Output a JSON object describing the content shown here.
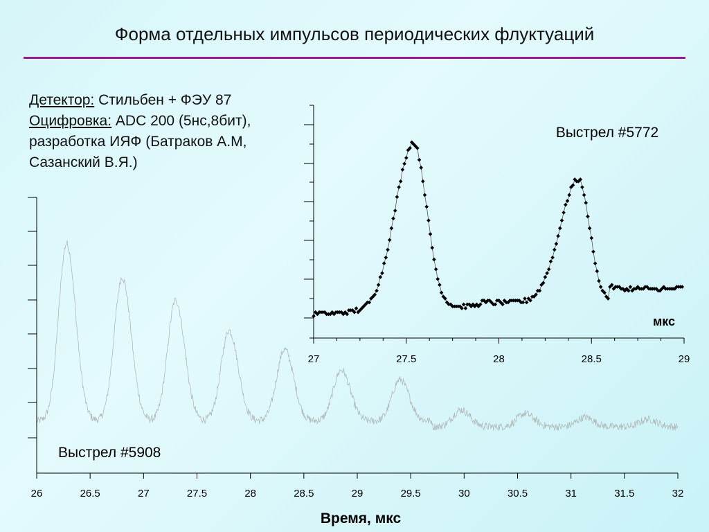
{
  "slide": {
    "title": "Форма отдельных импульсов периодических флуктуаций"
  },
  "info": {
    "detector_label": "Детектор:",
    "detector_value": " Стильбен + ФЭУ 87",
    "digitizer_label": "Оцифровка:",
    "digitizer_value": " ADC 200 (5нс,8бит),",
    "developer_line": "разработка ИЯФ (Батраков А.М,",
    "authors_line": "Сазанский В.Я.)"
  },
  "colors": {
    "title_rule": "#9a1a8e",
    "background": "#d6f6f9",
    "inset_trace": "#000000",
    "main_trace": "#b0b8b8"
  },
  "chart_data": [
    {
      "id": "main",
      "type": "line",
      "series": [
        {
          "name": "Выстрел #5908",
          "peaks": [
            {
              "x": 26.28,
              "height": 0.94
            },
            {
              "x": 26.8,
              "height": 0.76
            },
            {
              "x": 27.3,
              "height": 0.64
            },
            {
              "x": 27.8,
              "height": 0.48
            },
            {
              "x": 28.32,
              "height": 0.38
            },
            {
              "x": 28.85,
              "height": 0.27
            },
            {
              "x": 29.4,
              "height": 0.22
            },
            {
              "x": 29.97,
              "height": 0.09
            },
            {
              "x": 30.57,
              "height": 0.07
            },
            {
              "x": 31.13,
              "height": 0.05
            },
            {
              "x": 31.72,
              "height": 0.04
            }
          ],
          "baseline": 0.0
        }
      ],
      "series_label": "Выстрел #5908",
      "xlabel": "Время, мкс",
      "xlim": [
        26,
        32
      ],
      "x_ticks": [
        "26",
        "26.5",
        "27",
        "27.5",
        "28",
        "28.5",
        "29",
        "29.5",
        "30",
        "30.5",
        "31",
        "31.5",
        "32"
      ],
      "y_ticks_labeled": false
    },
    {
      "id": "inset",
      "type": "scatter",
      "series": [
        {
          "name": "Выстрел #5772",
          "peaks": [
            {
              "x": 27.54,
              "height": 0.93
            },
            {
              "x": 28.43,
              "height": 0.73
            }
          ],
          "baseline_left": 0.03,
          "valley": 0.09,
          "baseline_right": 0.16
        }
      ],
      "series_label": "Выстрел #5772",
      "unit_label": "мкс",
      "xlim": [
        27,
        29
      ],
      "x_ticks": [
        "27",
        "27.5",
        "28",
        "28.5",
        "29"
      ],
      "y_ticks_labeled": false
    }
  ]
}
